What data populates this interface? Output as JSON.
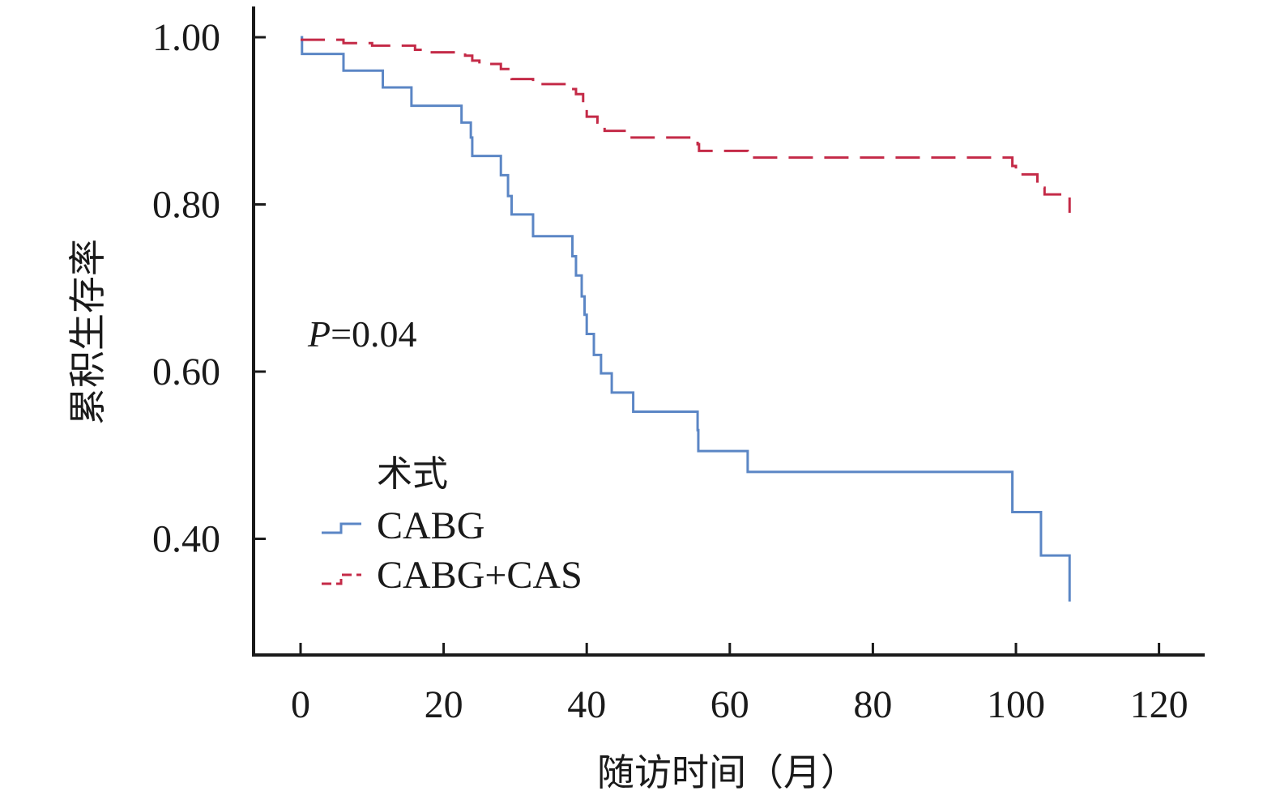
{
  "chart_data": {
    "type": "line",
    "subtype": "kaplan-meier step curves",
    "xlabel": "随访时间（月）",
    "ylabel": "累积生存率",
    "xlim": [
      -3,
      126
    ],
    "ylim": [
      0.26,
      1.02
    ],
    "x_ticks": [
      0,
      20,
      40,
      60,
      80,
      100,
      120
    ],
    "x_tick_labels": [
      "0",
      "20",
      "40",
      "60",
      "80",
      "100",
      "120"
    ],
    "y_ticks": [
      0.4,
      0.6,
      0.8,
      1.0
    ],
    "y_tick_labels": [
      "0.40",
      "0.60",
      "0.80",
      "1.00"
    ],
    "annotation": {
      "p_symbol": "P",
      "p_rest": "=0.04"
    },
    "legend": {
      "title": "术式",
      "position": "left-lower"
    },
    "series": [
      {
        "name": "CABG",
        "color": "#5b86c5",
        "dash": "solid",
        "points": [
          [
            0,
            1.0
          ],
          [
            0.2,
            0.98
          ],
          [
            6,
            0.96
          ],
          [
            11.5,
            0.94
          ],
          [
            15.5,
            0.918
          ],
          [
            22.5,
            0.898
          ],
          [
            23.8,
            0.88
          ],
          [
            24,
            0.858
          ],
          [
            28,
            0.835
          ],
          [
            29,
            0.81
          ],
          [
            29.5,
            0.788
          ],
          [
            32.5,
            0.762
          ],
          [
            38,
            0.738
          ],
          [
            38.5,
            0.715
          ],
          [
            39.3,
            0.69
          ],
          [
            39.7,
            0.668
          ],
          [
            40,
            0.645
          ],
          [
            41,
            0.62
          ],
          [
            42,
            0.598
          ],
          [
            43.5,
            0.575
          ],
          [
            46.5,
            0.552
          ],
          [
            55.5,
            0.53
          ],
          [
            55.6,
            0.505
          ],
          [
            62.5,
            0.48
          ],
          [
            99.5,
            0.432
          ],
          [
            103.5,
            0.38
          ],
          [
            107.5,
            0.325
          ]
        ]
      },
      {
        "name": "CABG+CAS",
        "color": "#c42a47",
        "dash": "dashed",
        "points": [
          [
            0,
            0.997
          ],
          [
            6,
            0.993
          ],
          [
            10,
            0.99
          ],
          [
            16,
            0.985
          ],
          [
            18,
            0.982
          ],
          [
            23,
            0.978
          ],
          [
            24,
            0.972
          ],
          [
            25,
            0.968
          ],
          [
            28,
            0.962
          ],
          [
            29.5,
            0.95
          ],
          [
            32.5,
            0.944
          ],
          [
            37.5,
            0.938
          ],
          [
            38.5,
            0.932
          ],
          [
            39.5,
            0.918
          ],
          [
            40,
            0.905
          ],
          [
            41.5,
            0.898
          ],
          [
            42.5,
            0.888
          ],
          [
            46,
            0.88
          ],
          [
            55.5,
            0.872
          ],
          [
            55.7,
            0.864
          ],
          [
            62.5,
            0.856
          ],
          [
            99.5,
            0.846
          ],
          [
            100,
            0.836
          ],
          [
            103,
            0.82
          ],
          [
            104,
            0.812
          ],
          [
            107.5,
            0.79
          ]
        ]
      }
    ]
  }
}
